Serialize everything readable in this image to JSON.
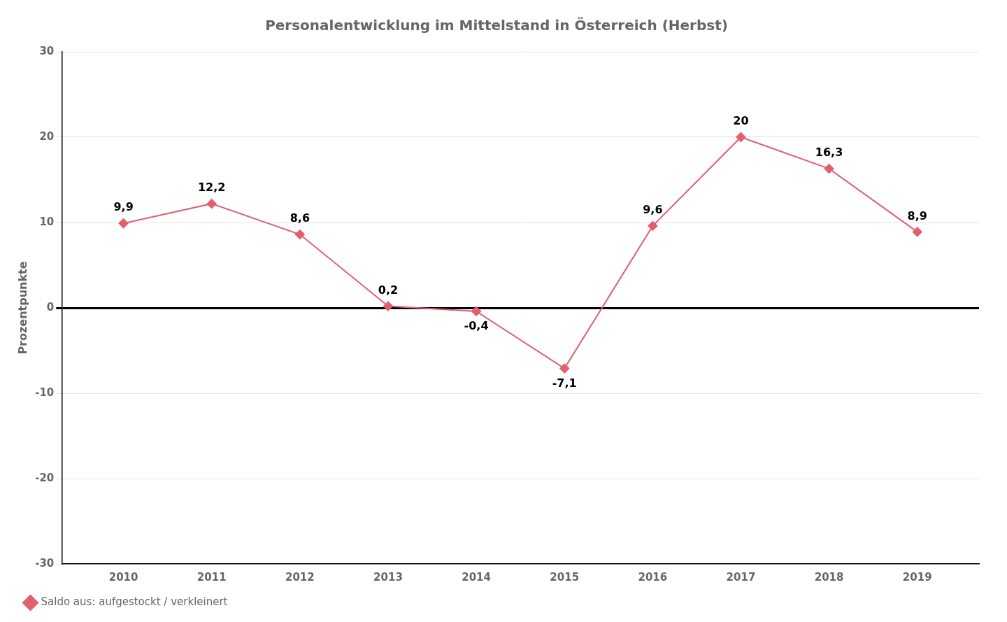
{
  "chart_data": {
    "type": "line",
    "title": "Personalentwicklung im Mittelstand in Österreich (Herbst)",
    "ylabel": "Prozentpunkte",
    "x": [
      2010,
      2011,
      2012,
      2013,
      2014,
      2015,
      2016,
      2017,
      2018,
      2019
    ],
    "series": [
      {
        "name": "Saldo aus: aufgestockt / verkleinert",
        "color": "#e06070",
        "marker": "diamond",
        "values": [
          9.9,
          12.2,
          8.6,
          0.2,
          -0.4,
          -7.1,
          9.6,
          20.0,
          16.3,
          8.9
        ],
        "value_labels": [
          "9,9",
          "12,2",
          "8,6",
          "0,2",
          "-0,4",
          "-7,1",
          "9,6",
          "20",
          "16,3",
          "8,9"
        ]
      }
    ],
    "xlim": [
      2009.3,
      2019.7
    ],
    "xticks": [
      2010,
      2011,
      2012,
      2013,
      2014,
      2015,
      2016,
      2017,
      2018,
      2019
    ],
    "ylim": [
      -30,
      30
    ],
    "yticks": [
      -30,
      -20,
      -10,
      0,
      10,
      20,
      30
    ],
    "grid": "y",
    "legend": "lower left"
  }
}
